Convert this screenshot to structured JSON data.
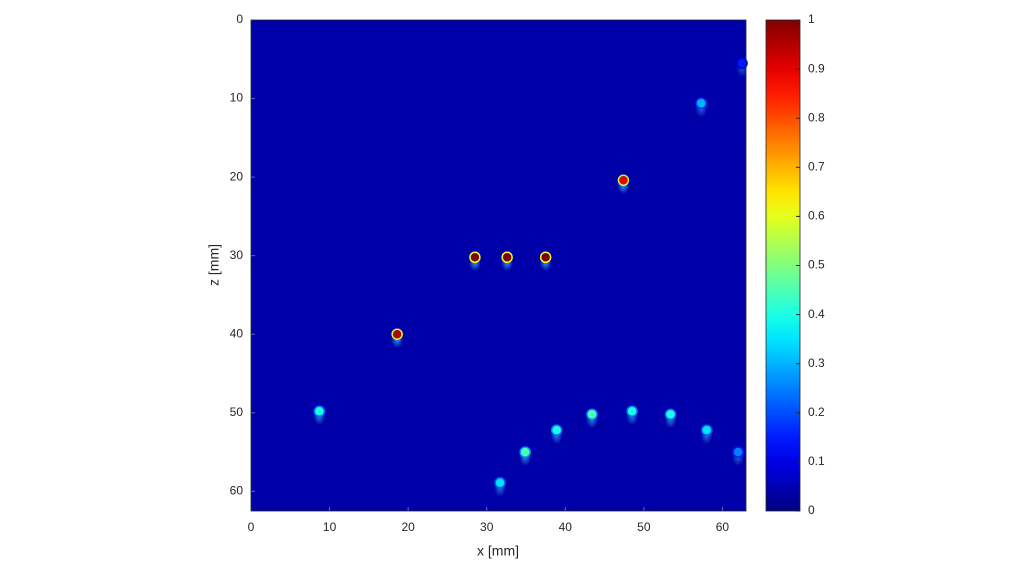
{
  "chart_data": {
    "type": "scatter",
    "x_label": "x [mm]",
    "y_label": "z [mm]",
    "x": [
      57.3,
      47.4,
      28.5,
      32.6,
      37.5,
      18.6,
      8.7,
      31.7,
      34.9,
      38.9,
      43.4,
      48.5,
      53.4,
      58.0,
      62.0,
      62.5
    ],
    "values": [
      10.6,
      20.4,
      30.2,
      30.2,
      30.2,
      40.0,
      49.8,
      58.9,
      55.0,
      52.2,
      50.2,
      49.8,
      50.2,
      52.2,
      55.0,
      5.5
    ],
    "intensity": [
      0.3,
      0.9,
      1.0,
      1.0,
      1.0,
      0.95,
      0.4,
      0.35,
      0.45,
      0.4,
      0.45,
      0.4,
      0.4,
      0.35,
      0.25,
      0.15
    ],
    "xlim": [
      0,
      63
    ],
    "ylim": [
      0,
      62.5
    ],
    "y_reversed": true,
    "xticks": [
      0,
      10,
      20,
      30,
      40,
      50,
      60
    ],
    "yticks": [
      0,
      10,
      20,
      30,
      40,
      50,
      60
    ],
    "colormap": "jet",
    "clim": [
      0,
      1
    ],
    "cticks": [
      0,
      0.1,
      0.2,
      0.3,
      0.4,
      0.5,
      0.6,
      0.7,
      0.8,
      0.9,
      1
    ],
    "background_value": 0.04
  }
}
